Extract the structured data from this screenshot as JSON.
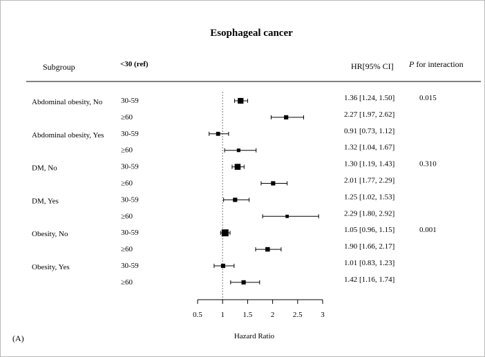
{
  "panel_label": "(A)",
  "chart_data": {
    "type": "forest",
    "title": "Esophageal cancer",
    "header": {
      "subgroup": "Subgroup",
      "reference": "<30 (ref)",
      "hr_ci": "HR[95% CI]",
      "p_interaction_italic": "P",
      "p_interaction_rest": " for interaction"
    },
    "xlabel": "Hazard Ratio",
    "xlim": [
      0.5,
      3
    ],
    "xticks": [
      "0.5",
      "1",
      "1.5",
      "2",
      "2.5",
      "3"
    ],
    "reference_line": 1,
    "rows": [
      {
        "group": "Abdominal obesity, No",
        "level": "30-59",
        "hr": 1.36,
        "lo": 1.24,
        "hi": 1.5,
        "text": "1.36 [1.24, 1.50]",
        "p": "0.015",
        "weight": 0.75
      },
      {
        "group": "",
        "level": "≥60",
        "hr": 2.27,
        "lo": 1.97,
        "hi": 2.62,
        "text": "2.27 [1.97, 2.62]",
        "p": "",
        "weight": 0.45
      },
      {
        "group": "Abdominal obesity, Yes",
        "level": "30-59",
        "hr": 0.91,
        "lo": 0.73,
        "hi": 1.12,
        "text": "0.91 [0.73, 1.12]",
        "p": "",
        "weight": 0.4
      },
      {
        "group": "",
        "level": "≥60",
        "hr": 1.32,
        "lo": 1.04,
        "hi": 1.67,
        "text": "1.32 [1.04, 1.67]",
        "p": "",
        "weight": 0.3
      },
      {
        "group": "DM, No",
        "level": "30-59",
        "hr": 1.3,
        "lo": 1.19,
        "hi": 1.43,
        "text": "1.30 [1.19, 1.43]",
        "p": "0.310",
        "weight": 0.8
      },
      {
        "group": "",
        "level": "≥60",
        "hr": 2.01,
        "lo": 1.77,
        "hi": 2.29,
        "text": "2.01 [1.77, 2.29]",
        "p": "",
        "weight": 0.45
      },
      {
        "group": "DM, Yes",
        "level": "30-59",
        "hr": 1.25,
        "lo": 1.02,
        "hi": 1.53,
        "text": "1.25 [1.02, 1.53]",
        "p": "",
        "weight": 0.45
      },
      {
        "group": "",
        "level": "≥60",
        "hr": 2.29,
        "lo": 1.8,
        "hi": 2.92,
        "text": "2.29 [1.80, 2.92]",
        "p": "",
        "weight": 0.25
      },
      {
        "group": "Obesity, No",
        "level": "30-59",
        "hr": 1.05,
        "lo": 0.96,
        "hi": 1.15,
        "text": "1.05 [0.96, 1.15]",
        "p": "0.001",
        "weight": 1.0
      },
      {
        "group": "",
        "level": "≥60",
        "hr": 1.9,
        "lo": 1.66,
        "hi": 2.17,
        "text": "1.90 [1.66, 2.17]",
        "p": "",
        "weight": 0.5
      },
      {
        "group": "Obesity, Yes",
        "level": "30-59",
        "hr": 1.01,
        "lo": 0.83,
        "hi": 1.23,
        "text": "1.01 [0.83, 1.23]",
        "p": "",
        "weight": 0.45
      },
      {
        "group": "",
        "level": "≥60",
        "hr": 1.42,
        "lo": 1.16,
        "hi": 1.74,
        "text": "1.42 [1.16, 1.74]",
        "p": "",
        "weight": 0.45
      }
    ]
  }
}
